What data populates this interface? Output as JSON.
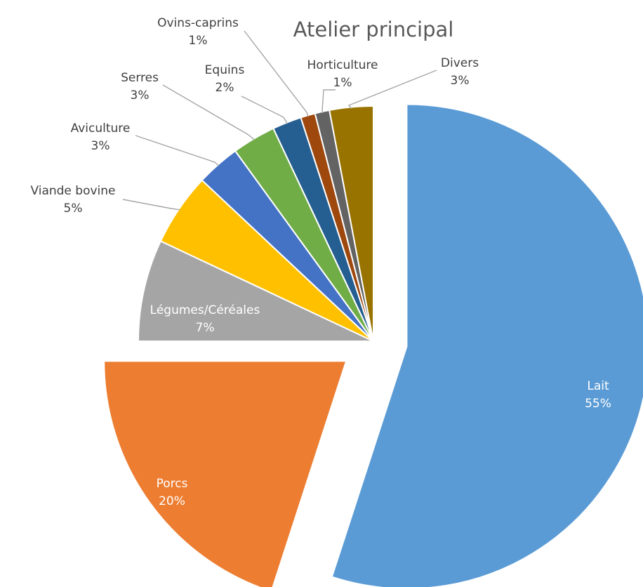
{
  "chart_data": {
    "type": "pie",
    "title": "Atelier principal",
    "slices": [
      {
        "name": "Lait",
        "value": 55,
        "label": "55%",
        "color": "#5b9bd5"
      },
      {
        "name": "Porcs",
        "value": 20,
        "label": "20%",
        "color": "#ed7d31"
      },
      {
        "name": "Légumes/Céréales",
        "value": 7,
        "label": "7%",
        "color": "#a5a5a5"
      },
      {
        "name": "Viande bovine",
        "value": 5,
        "label": "5%",
        "color": "#ffc000"
      },
      {
        "name": "Aviculture",
        "value": 3,
        "label": "3%",
        "color": "#4472c4"
      },
      {
        "name": "Serres",
        "value": 3,
        "label": "3%",
        "color": "#70ad47"
      },
      {
        "name": "Equins",
        "value": 2,
        "label": "2%",
        "color": "#255e91"
      },
      {
        "name": "Ovins-caprins",
        "value": 1,
        "label": "1%",
        "color": "#9e480e"
      },
      {
        "name": "Horticulture",
        "value": 1,
        "label": "1%",
        "color": "#636363"
      },
      {
        "name": "Divers",
        "value": 3,
        "label": "3%",
        "color": "#997300"
      }
    ],
    "exploded": [
      "Lait",
      "Porcs"
    ],
    "legend": "none",
    "data_labels": "category name and percentage"
  }
}
